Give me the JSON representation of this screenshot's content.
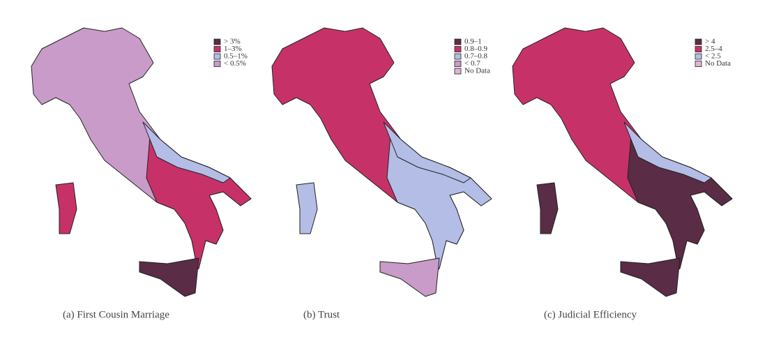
{
  "maps": [
    {
      "caption": "(a) First Cousin Marriage",
      "legend": [
        {
          "label": "> 3%",
          "color": "#5a2c46"
        },
        {
          "label": "1–3%",
          "color": "#c63268"
        },
        {
          "label": "0.5–1%",
          "color": "#b4bde6"
        },
        {
          "label": "< 0.5%",
          "color": "#c99bc9"
        }
      ]
    },
    {
      "caption": "(b) Trust",
      "legend": [
        {
          "label": "0.9–1",
          "color": "#5a2c46"
        },
        {
          "label": "0.8–0.9",
          "color": "#c63268"
        },
        {
          "label": "0.7–0.8",
          "color": "#b4bde6"
        },
        {
          "label": "< 0.7",
          "color": "#c99bc9"
        },
        {
          "label": "No Data",
          "color": "#dcb6d6"
        }
      ]
    },
    {
      "caption": "(c) Judicial Efficiency",
      "legend": [
        {
          "label": "> 4",
          "color": "#5a2c46"
        },
        {
          "label": "2.5–4",
          "color": "#c63268"
        },
        {
          "label": "< 2.5",
          "color": "#b4bde6"
        },
        {
          "label": "No Data",
          "color": "#dcb6d6"
        }
      ]
    }
  ]
}
